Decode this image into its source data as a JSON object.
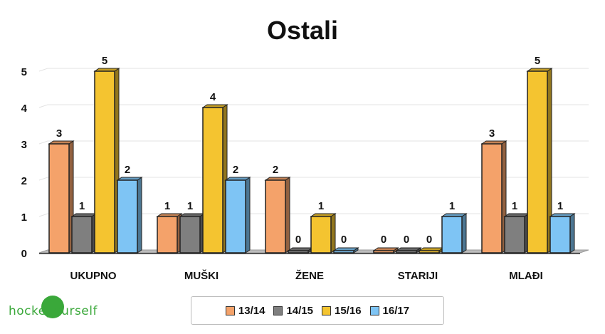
{
  "chart_data": {
    "type": "bar",
    "title": "Ostali",
    "categories": [
      "UKUPNO",
      "MUŠKI",
      "ŽENE",
      "STARIJI",
      "MLAĐI"
    ],
    "series": [
      {
        "name": "13/14",
        "values": [
          3,
          1,
          2,
          0,
          3
        ],
        "color": "#f4a26a"
      },
      {
        "name": "14/15",
        "values": [
          1,
          1,
          0,
          0,
          1
        ],
        "color": "#7f7f7f"
      },
      {
        "name": "15/16",
        "values": [
          5,
          4,
          1,
          0,
          5
        ],
        "color": "#f4c430"
      },
      {
        "name": "16/17",
        "values": [
          2,
          2,
          0,
          1,
          1
        ],
        "color": "#7ec4f4"
      }
    ],
    "yticks": [
      "0",
      "1",
      "2",
      "3",
      "4",
      "5"
    ],
    "ylim": [
      0,
      5
    ],
    "grid": true,
    "legend_position": "bottom"
  },
  "logo": {
    "text": "hockeyourself",
    "color": "#3aa83a"
  }
}
